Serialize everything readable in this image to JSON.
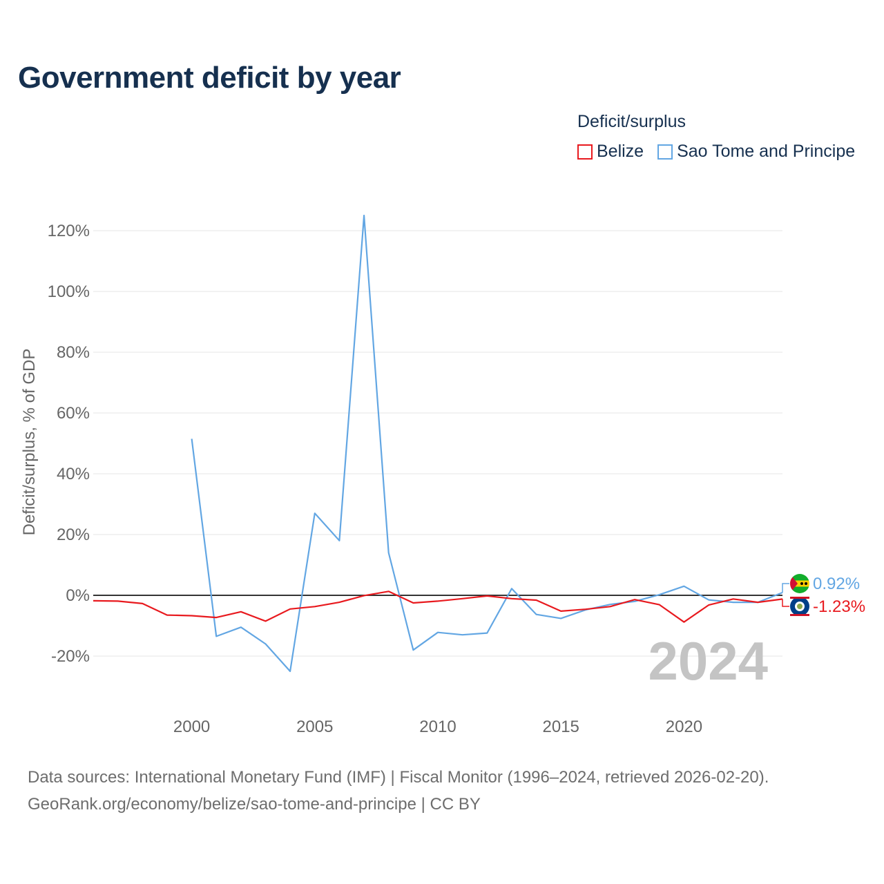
{
  "title": "Government deficit by year",
  "legend": {
    "title": "Deficit/surplus",
    "items": [
      {
        "label": "Belize",
        "color": "#e8191e"
      },
      {
        "label": "Sao Tome and Principe",
        "color": "#62a6e3"
      }
    ]
  },
  "year_watermark": "2024",
  "source": {
    "line1": "Data sources: International Monetary Fund (IMF) | Fiscal Monitor (1996–2024, retrieved 2026-02-20).",
    "line2": "GeoRank.org/economy/belize/sao-tome-and-principe | CC BY"
  },
  "chart_data": {
    "type": "line",
    "title": "Government deficit by year",
    "xlabel": "",
    "ylabel": "Deficit/surplus, % of GDP",
    "xlim": [
      1996,
      2024
    ],
    "ylim": [
      -30,
      130
    ],
    "yticks": [
      -20,
      0,
      20,
      40,
      60,
      80,
      100,
      120
    ],
    "ytick_labels": [
      "-20%",
      "0%",
      "20%",
      "40%",
      "60%",
      "80%",
      "100%",
      "120%"
    ],
    "xticks": [
      2000,
      2005,
      2010,
      2015,
      2020
    ],
    "xtick_labels": [
      "2000",
      "2005",
      "2010",
      "2015",
      "2020"
    ],
    "series": [
      {
        "name": "Belize",
        "color": "#e8191e",
        "end_label": "-1.23%",
        "x": [
          1996,
          1997,
          1998,
          1999,
          2000,
          2001,
          2002,
          2003,
          2004,
          2005,
          2006,
          2007,
          2008,
          2009,
          2010,
          2011,
          2012,
          2013,
          2014,
          2015,
          2016,
          2017,
          2018,
          2019,
          2020,
          2021,
          2022,
          2023,
          2024
        ],
        "values": [
          -1.8,
          -1.9,
          -2.7,
          -6.5,
          -6.7,
          -7.3,
          -5.4,
          -8.5,
          -4.5,
          -3.7,
          -2.3,
          -0.1,
          1.3,
          -2.5,
          -1.9,
          -1.1,
          -0.2,
          -1.1,
          -1.6,
          -5.2,
          -4.6,
          -3.7,
          -1.4,
          -3.1,
          -8.8,
          -3.2,
          -1.2,
          -2.3,
          -1.23
        ]
      },
      {
        "name": "Sao Tome and Principe",
        "color": "#62a6e3",
        "end_label": "0.92%",
        "x": [
          2000,
          2001,
          2002,
          2003,
          2004,
          2005,
          2006,
          2007,
          2008,
          2009,
          2010,
          2011,
          2012,
          2013,
          2014,
          2015,
          2016,
          2017,
          2018,
          2019,
          2020,
          2021,
          2022,
          2023,
          2024
        ],
        "values": [
          51.5,
          -13.5,
          -10.5,
          -16,
          -25,
          27,
          18,
          125,
          14,
          -18,
          -12.2,
          -13,
          -12.4,
          2.2,
          -6.3,
          -7.6,
          -4.8,
          -3.0,
          -2.0,
          0.2,
          3.0,
          -1.5,
          -2.3,
          -2.3,
          0.92
        ]
      }
    ]
  }
}
